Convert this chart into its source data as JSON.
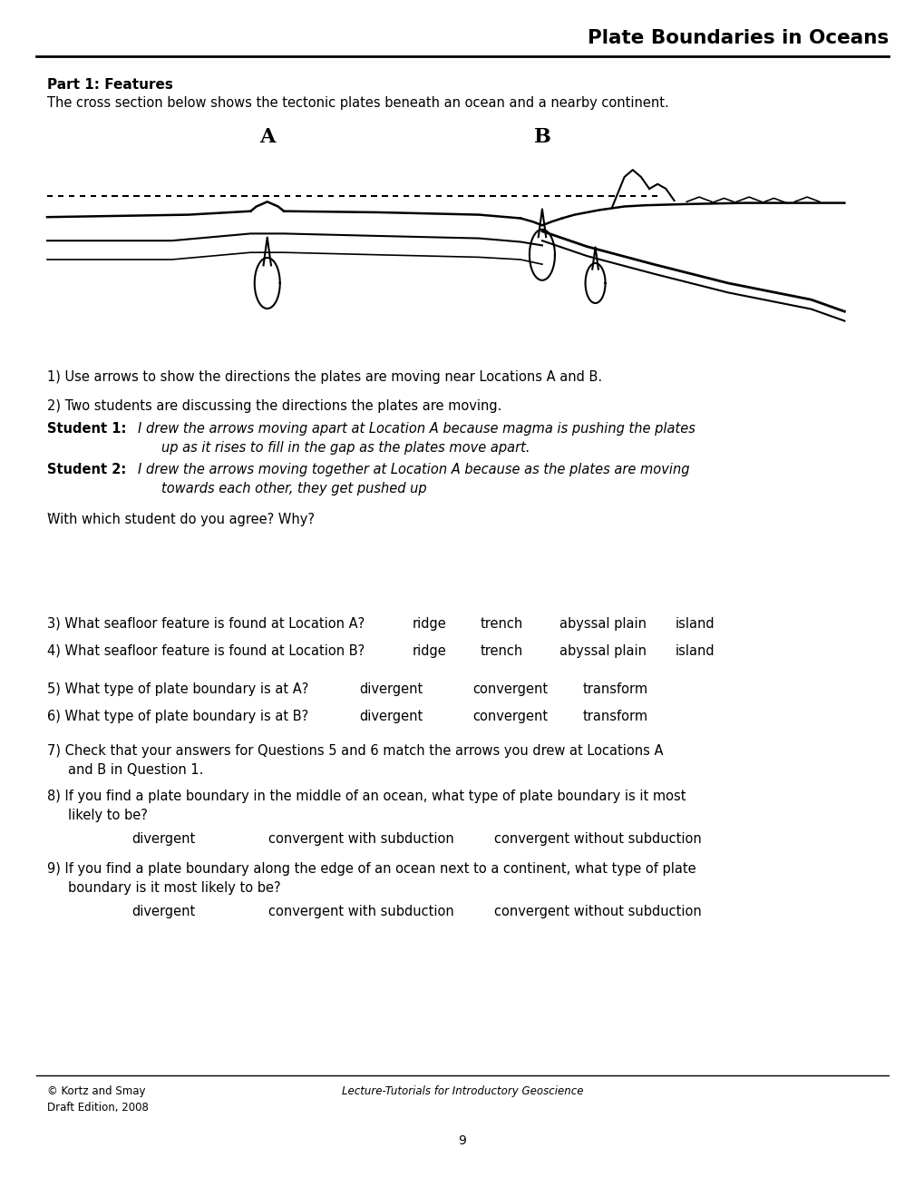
{
  "title": "Plate Boundaries in Oceans",
  "part1_header": "Part 1: Features",
  "part1_intro": "The cross section below shows the tectonic plates beneath an ocean and a nearby continent.",
  "q1": "1) Use arrows to show the directions the plates are moving near Locations A and B.",
  "q2": "2) Two students are discussing the directions the plates are moving.",
  "student1_label": "Student 1:",
  "student1_line1": "I drew the arrows moving apart at Location A because magma is pushing the plates",
  "student1_line2": "up as it rises to fill in the gap as the plates move apart.",
  "student2_label": "Student 2:",
  "student2_line1": "I drew the arrows moving together at Location A because as the plates are moving",
  "student2_line2": "towards each other, they get pushed up",
  "with_which": "With which student do you agree? Why?",
  "q3_main": "3) What seafloor feature is found at Location A?",
  "q3_opt1": "ridge",
  "q3_opt2": "trench",
  "q3_opt3": "abyssal plain",
  "q3_opt4": "island",
  "q4_main": "4) What seafloor feature is found at Location B?",
  "q4_opt1": "ridge",
  "q4_opt2": "trench",
  "q4_opt3": "abyssal plain",
  "q4_opt4": "island",
  "q5_main": "5) What type of plate boundary is at A?",
  "q5_opt1": "divergent",
  "q5_opt2": "convergent",
  "q5_opt3": "transform",
  "q6_main": "6) What type of plate boundary is at B?",
  "q6_opt1": "divergent",
  "q6_opt2": "convergent",
  "q6_opt3": "transform",
  "q7_line1": "7) Check that your answers for Questions 5 and 6 match the arrows you drew at Locations A",
  "q7_line2": "and B in Question 1.",
  "q8_line1": "8) If you find a plate boundary in the middle of an ocean, what type of plate boundary is it most",
  "q8_line2": "likely to be?",
  "q8_opt1": "divergent",
  "q8_opt2": "convergent with subduction",
  "q8_opt3": "convergent without subduction",
  "q9_line1": "9) If you find a plate boundary along the edge of an ocean next to a continent, what type of plate",
  "q9_line2": "boundary is it most likely to be?",
  "q9_opt1": "divergent",
  "q9_opt2": "convergent with subduction",
  "q9_opt3": "convergent without subduction",
  "footer_left_line1": "© Kortz and Smay",
  "footer_left_line2": "Draft Edition, 2008",
  "footer_center": "Lecture-Tutorials for Introductory Geoscience",
  "footer_page": "9",
  "bg_color": "#ffffff",
  "text_color": "#000000"
}
